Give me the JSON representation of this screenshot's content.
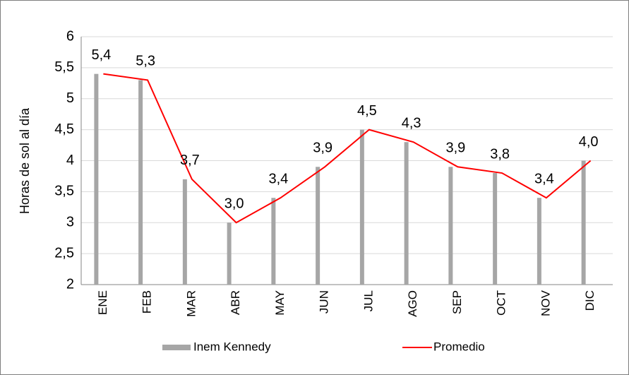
{
  "chart_data": {
    "type": "combo",
    "y_label": "Horas de sol al día",
    "categories": [
      "ENE",
      "FEB",
      "MAR",
      "ABR",
      "MAY",
      "JUN",
      "JUL",
      "AGO",
      "SEP",
      "OCT",
      "NOV",
      "DIC"
    ],
    "series": [
      {
        "name": "Inem Kennedy",
        "type": "bar",
        "color": "#a6a6a6",
        "values": [
          5.4,
          5.3,
          3.7,
          3.0,
          3.4,
          3.9,
          4.5,
          4.3,
          3.9,
          3.8,
          3.4,
          4.0
        ],
        "value_labels": [
          "5,4",
          "5,3",
          "3,7",
          "3,0",
          "3,4",
          "3,9",
          "4,5",
          "4,3",
          "3,9",
          "3,8",
          "3,4",
          "4,0"
        ]
      },
      {
        "name": "Promedio",
        "type": "line",
        "color": "#ff0000",
        "values": [
          5.4,
          5.3,
          3.7,
          3.0,
          3.4,
          3.9,
          4.5,
          4.3,
          3.9,
          3.8,
          3.4,
          4.0
        ]
      }
    ],
    "ylim": [
      2,
      6
    ],
    "yticks": [
      2,
      {
        "value": 2.5,
        "label": "2,5"
      },
      3,
      {
        "value": 3.5,
        "label": "3,5"
      },
      4,
      {
        "value": 4.5,
        "label": "4,5"
      },
      5,
      {
        "value": 5.5,
        "label": "5,5"
      },
      6
    ],
    "grid": true,
    "legend": "bottom"
  }
}
